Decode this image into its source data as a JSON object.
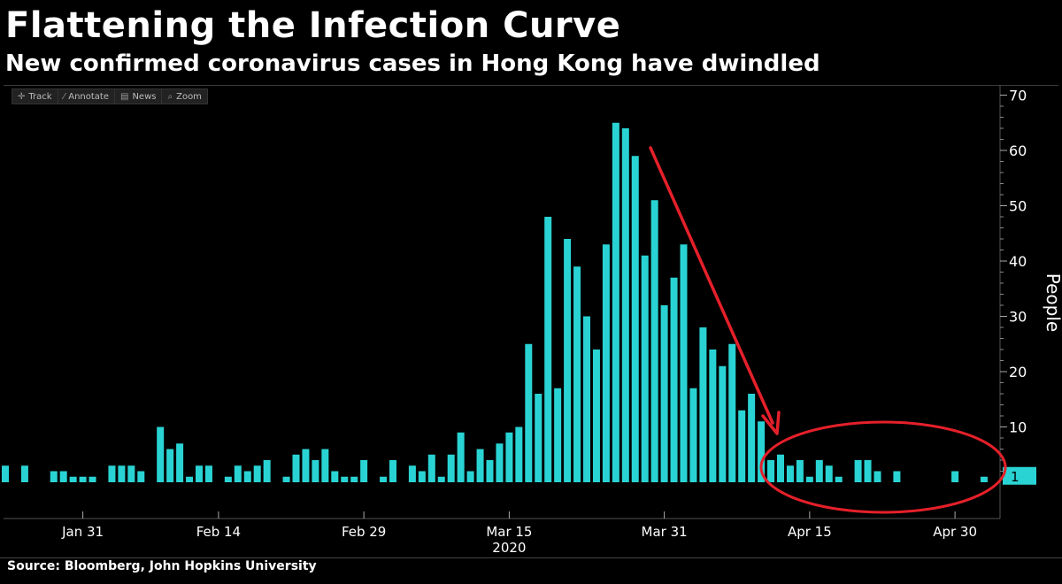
{
  "header": {
    "title": "Flattening the Infection Curve",
    "subtitle": "New confirmed coronavirus cases in Hong Kong have dwindled"
  },
  "toolbar": {
    "items": [
      {
        "label": "Track",
        "icon": "crosshair-icon"
      },
      {
        "label": "Annotate",
        "icon": "pencil-icon"
      },
      {
        "label": "News",
        "icon": "news-icon"
      },
      {
        "label": "Zoom",
        "icon": "magnifier-icon"
      }
    ]
  },
  "footer": {
    "source": "Source: Bloomberg, John Hopkins University"
  },
  "chart_data": {
    "type": "bar",
    "ylabel": "People",
    "ylim": [
      -6,
      70
    ],
    "yticks": [
      10,
      20,
      30,
      40,
      50,
      60,
      70
    ],
    "start_date": "2020-01-23",
    "x_ticks": [
      {
        "label": "Jan 31",
        "date": "2020-01-31"
      },
      {
        "label": "Feb 14",
        "date": "2020-02-14"
      },
      {
        "label": "Feb 29",
        "date": "2020-02-29"
      },
      {
        "label": "Mar 15",
        "date": "2020-03-15"
      },
      {
        "label": "Mar 31",
        "date": "2020-03-31"
      },
      {
        "label": "Apr 15",
        "date": "2020-04-15"
      },
      {
        "label": "Apr 30",
        "date": "2020-04-30"
      }
    ],
    "year_label": "2020",
    "values": [
      3,
      0,
      3,
      0,
      0,
      2,
      2,
      1,
      1,
      1,
      0,
      3,
      3,
      3,
      2,
      0,
      10,
      6,
      7,
      1,
      3,
      3,
      0,
      1,
      3,
      2,
      3,
      4,
      0,
      1,
      5,
      6,
      4,
      6,
      2,
      1,
      1,
      4,
      0,
      1,
      4,
      0,
      3,
      2,
      5,
      1,
      5,
      9,
      2,
      6,
      4,
      7,
      9,
      10,
      25,
      16,
      48,
      17,
      44,
      39,
      30,
      24,
      43,
      65,
      64,
      59,
      41,
      51,
      32,
      37,
      43,
      17,
      28,
      24,
      21,
      25,
      13,
      16,
      11,
      4,
      5,
      3,
      4,
      1,
      4,
      3,
      1,
      0,
      4,
      4,
      2,
      0,
      2,
      0,
      0,
      0,
      0,
      0,
      2,
      0,
      0,
      1
    ],
    "last_value_label": "1",
    "colors": {
      "bar": "#2ad3d3",
      "arrow": "#e5202a",
      "ellipse": "#e5202a",
      "background": "#000000"
    }
  }
}
